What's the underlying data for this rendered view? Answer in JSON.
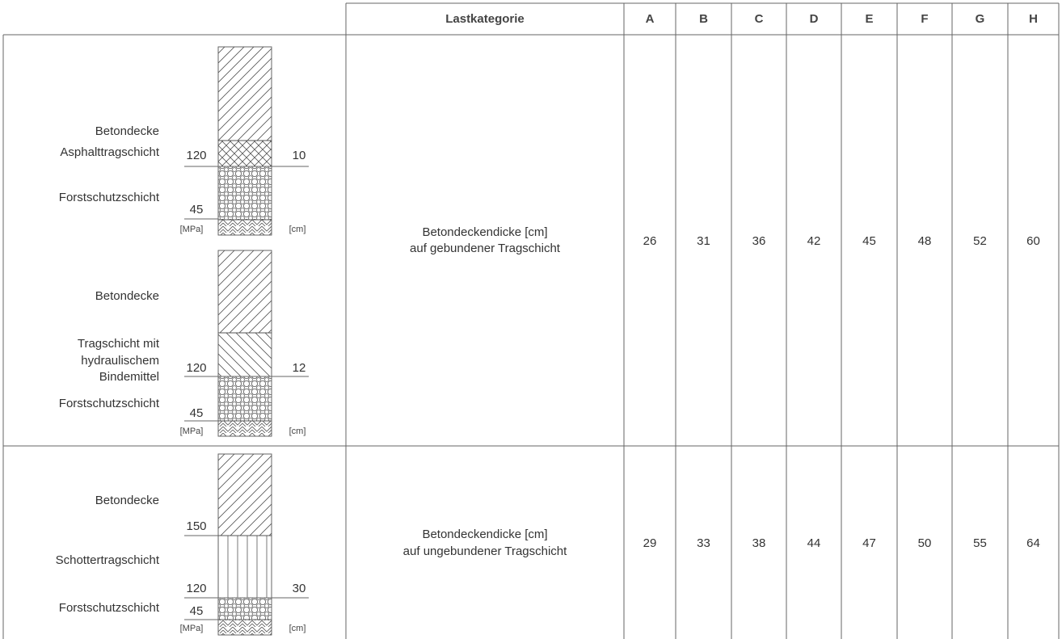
{
  "table": {
    "header": [
      "Lastkategorie",
      "A",
      "B",
      "C",
      "D",
      "E",
      "F",
      "G",
      "H"
    ],
    "rows": [
      {
        "description": [
          "Betondeckendicke [cm]",
          "auf gebundener Tragschicht"
        ],
        "values": [
          26,
          31,
          36,
          42,
          45,
          48,
          52,
          60
        ]
      },
      {
        "description": [
          "Betondeckendicke [cm]",
          "auf ungebundener Tragschicht"
        ],
        "values": [
          29,
          33,
          38,
          44,
          47,
          50,
          55,
          64
        ]
      }
    ]
  },
  "diagrams": [
    {
      "layers": [
        [
          "Betondecke"
        ],
        [
          "Asphalttragschicht"
        ],
        [
          "Forstschutzschicht"
        ]
      ],
      "left_values": [
        120,
        45
      ],
      "right_values": [
        10
      ],
      "left_unit": "[MPa]",
      "right_unit": "[cm]"
    },
    {
      "layers": [
        [
          "Betondecke"
        ],
        [
          "Tragschicht mit",
          "hydraulischem",
          "Bindemittel"
        ],
        [
          "Forstschutzschicht"
        ]
      ],
      "left_values": [
        120,
        45
      ],
      "right_values": [
        12
      ],
      "left_unit": "[MPa]",
      "right_unit": "[cm]"
    },
    {
      "layers": [
        [
          "Betondecke"
        ],
        [
          "Schottertragschicht"
        ],
        [
          "Forstschutzschicht"
        ]
      ],
      "left_values": [
        150,
        120,
        45
      ],
      "right_values": [
        30
      ],
      "left_unit": "[MPa]",
      "right_unit": "[cm]"
    }
  ]
}
